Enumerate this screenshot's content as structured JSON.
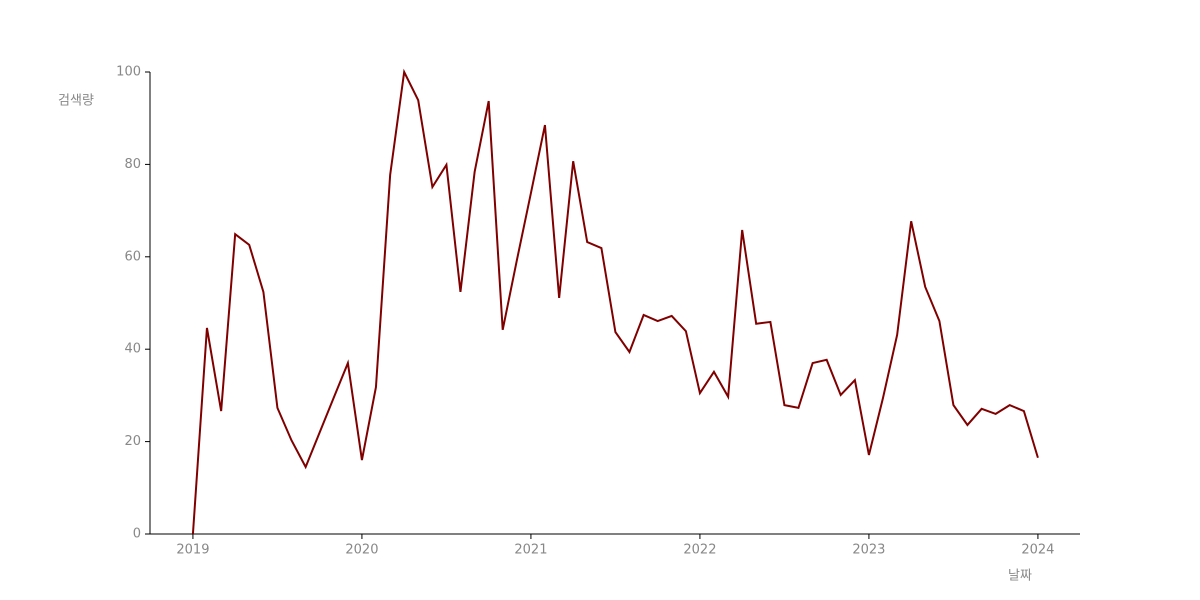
{
  "chart_data": {
    "type": "line",
    "y_label": "검색량",
    "x_label": "날짜",
    "x": [
      2019,
      2019.083,
      2019.167,
      2019.25,
      2019.333,
      2019.417,
      2019.5,
      2019.583,
      2019.667,
      2019.75,
      2019.833,
      2019.917,
      2020,
      2020.083,
      2020.167,
      2020.25,
      2020.333,
      2020.417,
      2020.5,
      2020.583,
      2020.667,
      2020.75,
      2020.833,
      2020.917,
      2021,
      2021.083,
      2021.167,
      2021.25,
      2021.333,
      2021.417,
      2021.5,
      2021.583,
      2021.667,
      2021.75,
      2021.833,
      2021.917,
      2022,
      2022.083,
      2022.167,
      2022.25,
      2022.333,
      2022.417,
      2022.5,
      2022.583,
      2022.667,
      2022.75,
      2022.833,
      2022.917,
      2023,
      2023.083,
      2023.167,
      2023.25,
      2023.333,
      2023.417,
      2023.5,
      2023.583,
      2023.667,
      2023.75,
      2023.833,
      2023.917,
      2024
    ],
    "series": [
      {
        "color": "#800000",
        "values": [
          0,
          44.6,
          26.6,
          64.9,
          62.6,
          52.4,
          27.3,
          20.3,
          14.5,
          22,
          29.5,
          37,
          16,
          31.8,
          77.7,
          100,
          93.9,
          75.1,
          79.9,
          52.4,
          78.4,
          93.7,
          44.2,
          59.3,
          73.8,
          88.5,
          51.1,
          80.7,
          63.2,
          61.9,
          43.7,
          39.4,
          47.4,
          46.1,
          47.2,
          43.9,
          30.5,
          35.1,
          29.7,
          65.8,
          45.5,
          45.9,
          27.9,
          27.3,
          37,
          37.7,
          30.1,
          33.3,
          17.1,
          29.4,
          43.1,
          67.7,
          53.5,
          46.1,
          27.9,
          23.6,
          27.1,
          26,
          27.9,
          26.6,
          16.5
        ]
      }
    ],
    "xlim": [
      2018.746,
      2024.249
    ],
    "xticks": [
      2019,
      2020,
      2021,
      2022,
      2023,
      2024
    ],
    "ylim": [
      0,
      100
    ],
    "yticks": [
      0,
      20,
      40,
      60,
      80,
      100
    ],
    "grid": false
  }
}
